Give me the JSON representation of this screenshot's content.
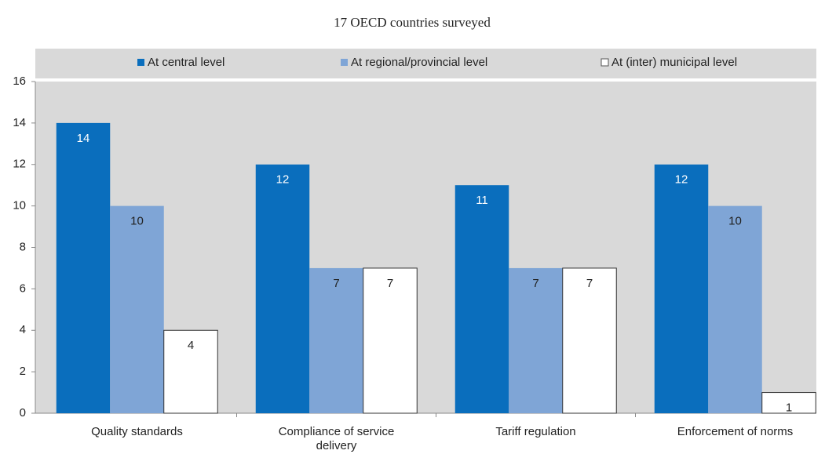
{
  "chart_data": {
    "type": "bar",
    "title": "17 OECD countries surveyed",
    "categories": [
      "Quality standards",
      "Compliance of service delivery",
      "Tariff regulation",
      "Enforcement of norms"
    ],
    "series": [
      {
        "name": "At central level",
        "color": "#0a6ebd",
        "values": [
          14,
          12,
          11,
          12
        ]
      },
      {
        "name": "At regional/provincial level",
        "color": "#7fa5d6",
        "values": [
          10,
          7,
          7,
          10
        ]
      },
      {
        "name": "At (inter) municipal level",
        "color": "#ffffff",
        "values": [
          4,
          7,
          7,
          1
        ]
      }
    ],
    "ylim": [
      0,
      16
    ],
    "yticks": [
      0,
      2,
      4,
      6,
      8,
      10,
      12,
      14,
      16
    ],
    "grid": false,
    "legend": "top"
  }
}
